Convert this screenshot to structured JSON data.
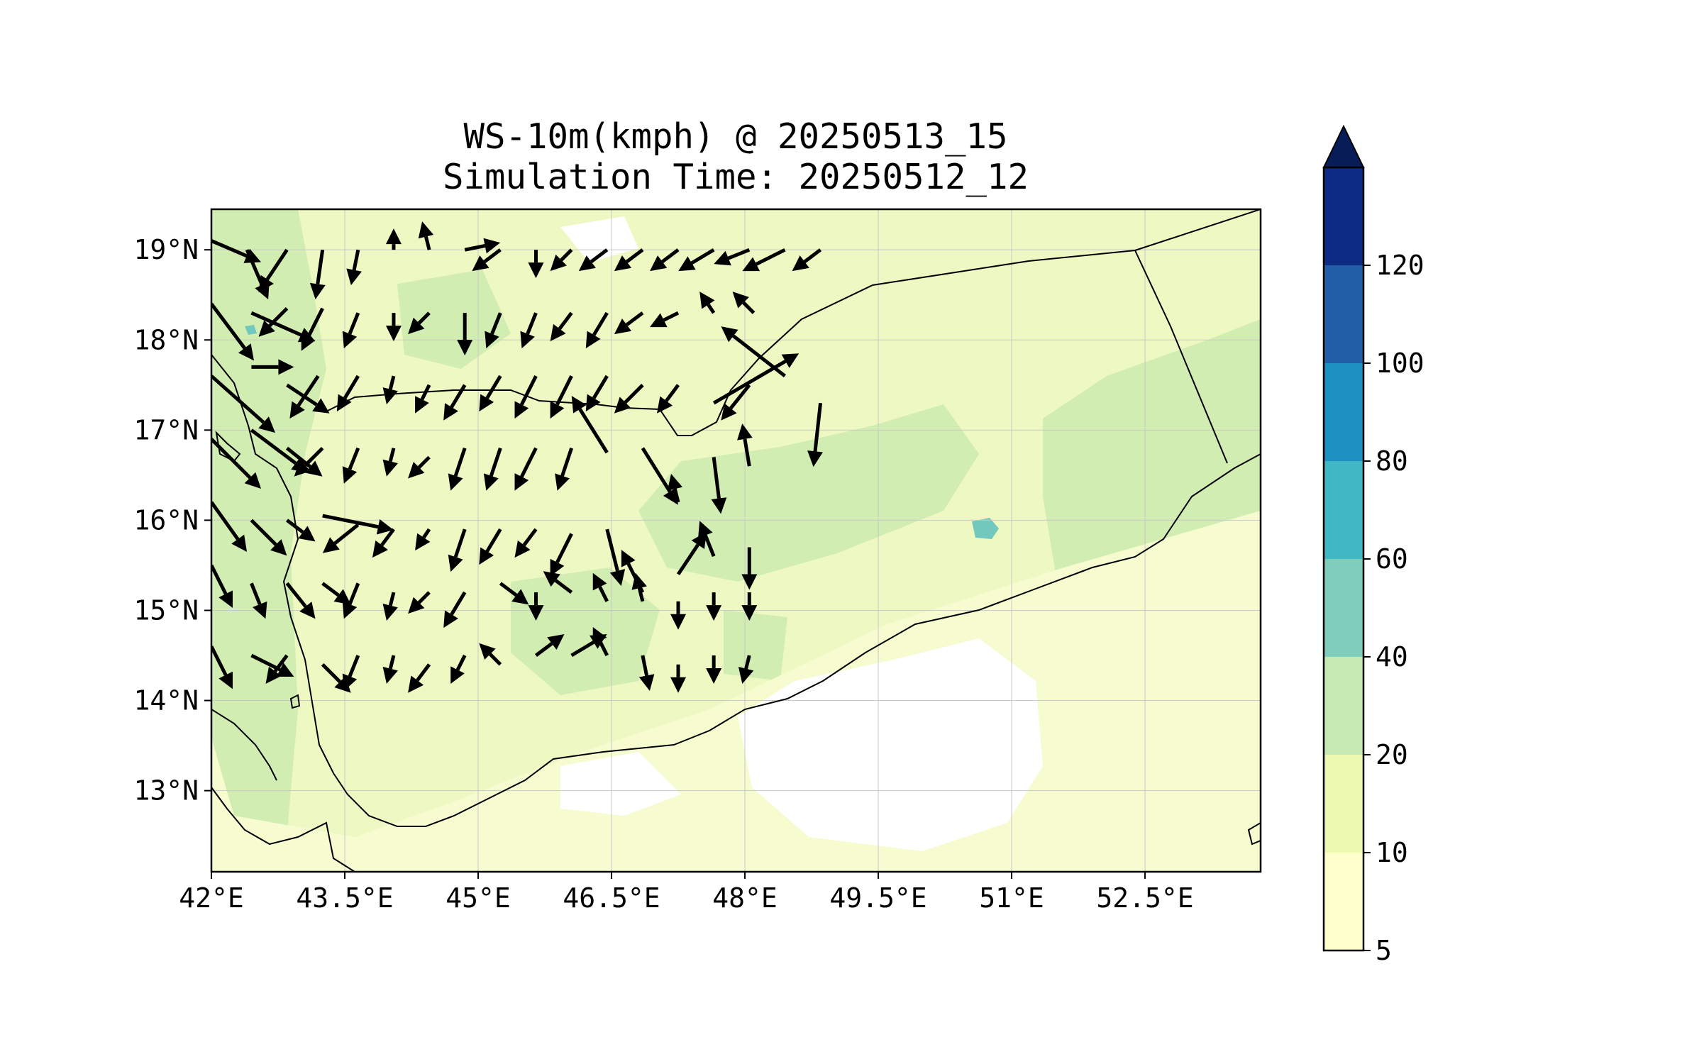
{
  "title": {
    "line1": "WS-10m(kmph) @ 20250513_15",
    "line2": "Simulation Time: 20250512_12"
  },
  "map": {
    "lon_range": [
      42,
      53.8
    ],
    "lat_range": [
      12.1,
      19.45
    ],
    "lon_ticks": [
      {
        "value": 42,
        "label": "42°E"
      },
      {
        "value": 43.5,
        "label": "43.5°E"
      },
      {
        "value": 45,
        "label": "45°E"
      },
      {
        "value": 46.5,
        "label": "46.5°E"
      },
      {
        "value": 48,
        "label": "48°E"
      },
      {
        "value": 49.5,
        "label": "49.5°E"
      },
      {
        "value": 51,
        "label": "51°E"
      },
      {
        "value": 52.5,
        "label": "52.5°E"
      }
    ],
    "lat_ticks": [
      {
        "value": 19,
        "label": "19°N"
      },
      {
        "value": 18,
        "label": "18°N"
      },
      {
        "value": 17,
        "label": "17°N"
      },
      {
        "value": 16,
        "label": "16°N"
      },
      {
        "value": 15,
        "label": "15°N"
      },
      {
        "value": 14,
        "label": "14°N"
      },
      {
        "value": 13,
        "label": "13°N"
      }
    ],
    "gridlines": true,
    "colors": {
      "land_base": "#eef8c2",
      "ocean_pale": "#f6fcd0",
      "calm": "#ffffff",
      "band_20_40": "#d2edb2",
      "band_40_60": "#73c8bd",
      "boundary": "#000000"
    },
    "wind_vectors_u_v": [
      [
        42,
        19.1,
        7,
        -3
      ],
      [
        42.4,
        19,
        3,
        -7
      ],
      [
        42.85,
        19,
        -4,
        -6
      ],
      [
        43.25,
        19,
        -1,
        -7
      ],
      [
        43.65,
        19,
        -1,
        -5
      ],
      [
        44.05,
        19,
        0,
        3
      ],
      [
        44.45,
        19,
        -1,
        4
      ],
      [
        44.85,
        19,
        5,
        1
      ],
      [
        45.25,
        19,
        -4,
        -3
      ],
      [
        45.65,
        19,
        0,
        -4
      ],
      [
        46.05,
        19,
        -3,
        -3
      ],
      [
        46.45,
        19,
        -4,
        -3
      ],
      [
        46.85,
        19,
        -4,
        -3
      ],
      [
        47.25,
        19,
        -4,
        -3
      ],
      [
        47.65,
        19,
        -5,
        -3
      ],
      [
        48.05,
        19,
        -5,
        -2
      ],
      [
        48.45,
        19,
        -6,
        -3
      ],
      [
        48.85,
        19,
        -4,
        -3
      ],
      [
        42,
        18.4,
        6,
        -8
      ],
      [
        42.45,
        18.3,
        9,
        -4
      ],
      [
        42.85,
        18.35,
        -4,
        -4
      ],
      [
        43.25,
        18.35,
        -3,
        -6
      ],
      [
        43.65,
        18.3,
        -2,
        -5
      ],
      [
        44.05,
        18.3,
        0,
        -4
      ],
      [
        44.45,
        18.3,
        -3,
        -3
      ],
      [
        44.85,
        18.3,
        0,
        -6
      ],
      [
        45.25,
        18.3,
        -2,
        -5
      ],
      [
        45.65,
        18.3,
        -2,
        -5
      ],
      [
        46.05,
        18.3,
        -3,
        -4
      ],
      [
        46.45,
        18.3,
        -3,
        -5
      ],
      [
        46.85,
        18.3,
        -4,
        -3
      ],
      [
        47.25,
        18.3,
        -4,
        -2
      ],
      [
        47.65,
        18.3,
        -2,
        3
      ],
      [
        48.1,
        18.3,
        -3,
        3
      ],
      [
        42,
        17.6,
        9,
        -8
      ],
      [
        42.45,
        17.7,
        6,
        0
      ],
      [
        42.85,
        17.5,
        6,
        -4
      ],
      [
        43.2,
        17.6,
        -4,
        -6
      ],
      [
        43.65,
        17.6,
        -3,
        -5
      ],
      [
        44.05,
        17.6,
        -1,
        -4
      ],
      [
        44.45,
        17.5,
        -2,
        -4
      ],
      [
        44.85,
        17.5,
        -3,
        -5
      ],
      [
        45.25,
        17.6,
        -3,
        -5
      ],
      [
        45.65,
        17.6,
        -3,
        -6
      ],
      [
        46.05,
        17.6,
        -3,
        -6
      ],
      [
        46.45,
        17.6,
        -3,
        -5
      ],
      [
        46.85,
        17.5,
        -4,
        -4
      ],
      [
        47.25,
        17.5,
        -3,
        -4
      ],
      [
        47.65,
        17.3,
        12,
        7
      ],
      [
        48.05,
        17.5,
        -4,
        -5
      ],
      [
        48.45,
        17.6,
        -9,
        7
      ],
      [
        48.85,
        17.3,
        -1,
        -9
      ],
      [
        42,
        16.9,
        7,
        -7
      ],
      [
        42.45,
        17,
        8,
        -6
      ],
      [
        42.85,
        16.8,
        5,
        -4
      ],
      [
        43.25,
        16.8,
        -4,
        -4
      ],
      [
        43.65,
        16.8,
        -2,
        -5
      ],
      [
        44.05,
        16.8,
        -1,
        -4
      ],
      [
        44.45,
        16.7,
        -3,
        -3
      ],
      [
        44.85,
        16.8,
        -2,
        -6
      ],
      [
        45.25,
        16.8,
        -2,
        -6
      ],
      [
        45.65,
        16.8,
        -3,
        -6
      ],
      [
        46.05,
        16.8,
        -2,
        -6
      ],
      [
        46.45,
        16.75,
        -5,
        8
      ],
      [
        46.85,
        16.8,
        5,
        -8
      ],
      [
        47.25,
        16.2,
        -1,
        4
      ],
      [
        47.65,
        16.7,
        1,
        -8
      ],
      [
        48.05,
        16.6,
        -1,
        6
      ],
      [
        42,
        16.2,
        5,
        -7
      ],
      [
        42.45,
        16,
        5,
        -5
      ],
      [
        42.85,
        16,
        4,
        -3
      ],
      [
        43.25,
        16.05,
        10,
        -2
      ],
      [
        43.65,
        15.95,
        -5,
        -4
      ],
      [
        44.05,
        15.9,
        -3,
        -4
      ],
      [
        44.45,
        15.9,
        -2,
        -3
      ],
      [
        44.85,
        15.9,
        -2,
        -6
      ],
      [
        45.25,
        15.9,
        -3,
        -5
      ],
      [
        45.65,
        15.9,
        -3,
        -4
      ],
      [
        46.05,
        15.85,
        -3,
        -6
      ],
      [
        46.45,
        15.9,
        2,
        -8
      ],
      [
        46.85,
        15.2,
        -3,
        6
      ],
      [
        47.25,
        15.4,
        4,
        6
      ],
      [
        47.65,
        15.6,
        -2,
        5
      ],
      [
        48.05,
        15.7,
        0,
        -6
      ],
      [
        42,
        15.5,
        3,
        -6
      ],
      [
        42.45,
        15.3,
        2,
        -5
      ],
      [
        42.85,
        15.3,
        4,
        -5
      ],
      [
        43.25,
        15.3,
        4,
        -3
      ],
      [
        43.65,
        15.3,
        -2,
        -5
      ],
      [
        44.05,
        15.2,
        -1,
        -4
      ],
      [
        44.45,
        15.2,
        -3,
        -3
      ],
      [
        44.85,
        15.2,
        -3,
        -5
      ],
      [
        45.25,
        15.3,
        4,
        -3
      ],
      [
        45.65,
        15.2,
        0,
        -4
      ],
      [
        46.05,
        15.2,
        -4,
        3
      ],
      [
        46.45,
        15.1,
        -2,
        4
      ],
      [
        46.85,
        15.1,
        -1,
        4
      ],
      [
        47.25,
        15.1,
        0,
        -4
      ],
      [
        47.65,
        15.2,
        0,
        -4
      ],
      [
        48.05,
        15.2,
        0,
        -4
      ],
      [
        42,
        14.6,
        3,
        -6
      ],
      [
        42.45,
        14.5,
        6,
        -3
      ],
      [
        42.85,
        14.5,
        -3,
        -4
      ],
      [
        43.25,
        14.4,
        4,
        -4
      ],
      [
        43.65,
        14.5,
        -2,
        -5
      ],
      [
        44.05,
        14.5,
        -1,
        -4
      ],
      [
        44.45,
        14.4,
        -3,
        -4
      ],
      [
        44.85,
        14.5,
        -2,
        -4
      ],
      [
        45.25,
        14.4,
        -3,
        3
      ],
      [
        45.65,
        14.5,
        4,
        3
      ],
      [
        46.05,
        14.5,
        5,
        3
      ],
      [
        46.45,
        14.5,
        -2,
        4
      ],
      [
        46.85,
        14.5,
        1,
        -5
      ],
      [
        47.25,
        14.4,
        0,
        -4
      ],
      [
        47.65,
        14.5,
        0,
        -4
      ],
      [
        48.05,
        14.5,
        -1,
        -4
      ]
    ],
    "colorbar": {
      "boundaries": [
        5,
        10,
        20,
        40,
        60,
        80,
        100,
        120
      ],
      "colors": [
        "#ffffcc",
        "#edf8b1",
        "#c7e9b4",
        "#7fcdbb",
        "#41b6c4",
        "#1d91c0",
        "#225ea8",
        "#0c2c84"
      ],
      "extend_color": "#081d58",
      "extend": "max",
      "tick_labels": [
        "5",
        "10",
        "20",
        "40",
        "60",
        "80",
        "100",
        "120"
      ]
    }
  }
}
